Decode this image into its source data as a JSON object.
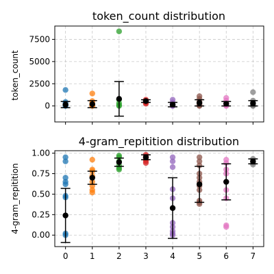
{
  "chart_data": [
    {
      "type": "scatter",
      "title": "token_count distribution",
      "xlabel": "",
      "ylabel": "token_count",
      "xlim": [
        -0.4,
        7.4
      ],
      "ylim": [
        -1800,
        9000
      ],
      "yticks": [
        0,
        2500,
        5000,
        7500
      ],
      "ytick_labels": [
        "0",
        "2500",
        "5000",
        "7500"
      ],
      "x_ticks": [
        0,
        1,
        2,
        3,
        4,
        5,
        6,
        7
      ],
      "grid": true,
      "points": [
        {
          "x": 0,
          "values": [
            1800,
            450,
            300,
            150,
            80,
            20,
            0
          ]
        },
        {
          "x": 1,
          "values": [
            1400,
            550,
            350,
            200,
            100,
            30,
            0
          ]
        },
        {
          "x": 2,
          "values": [
            8400,
            700,
            300,
            100,
            0
          ]
        },
        {
          "x": 3,
          "values": [
            700,
            600,
            450,
            350,
            250
          ]
        },
        {
          "x": 4,
          "values": [
            700,
            400,
            200,
            80,
            20,
            0
          ]
        },
        {
          "x": 5,
          "values": [
            1100,
            800,
            500,
            300,
            150,
            50,
            0
          ]
        },
        {
          "x": 6,
          "values": [
            900,
            600,
            300,
            150,
            50,
            0
          ]
        },
        {
          "x": 7,
          "values": [
            1550,
            600,
            350,
            150,
            50,
            0
          ]
        }
      ],
      "means": [
        150,
        200,
        800,
        550,
        150,
        350,
        250,
        300
      ],
      "errors": [
        350,
        400,
        1950,
        150,
        250,
        350,
        250,
        300
      ]
    },
    {
      "type": "scatter",
      "title": "4-gram_repitition distribution",
      "xlabel": "",
      "ylabel": "4-gram_repitition",
      "xlim": [
        -0.4,
        7.4
      ],
      "ylim": [
        -0.14,
        1.03
      ],
      "yticks": [
        0.0,
        0.25,
        0.5,
        0.75,
        1.0
      ],
      "ytick_labels": [
        "0.00",
        "0.25",
        "0.50",
        "0.75",
        "1.00"
      ],
      "x_ticks": [
        0,
        1,
        2,
        3,
        4,
        5,
        6,
        7
      ],
      "x_tick_labels": [
        "0",
        "1",
        "2",
        "3",
        "4",
        "5",
        "6",
        "7"
      ],
      "grid": true,
      "points": [
        {
          "x": 0,
          "values": [
            0.95,
            0.9,
            0.7,
            0.65,
            0.62,
            0.48,
            0.46,
            0.02,
            0.0
          ]
        },
        {
          "x": 1,
          "values": [
            0.92,
            0.8,
            0.78,
            0.72,
            0.65,
            0.6,
            0.55,
            0.52
          ]
        },
        {
          "x": 2,
          "values": [
            0.97,
            0.95,
            0.9,
            0.85,
            0.82,
            0.8
          ]
        },
        {
          "x": 3,
          "values": [
            0.98,
            0.96,
            0.94,
            0.92,
            0.9,
            0.88
          ]
        },
        {
          "x": 4,
          "values": [
            0.95,
            0.9,
            0.83,
            0.56,
            0.45,
            0.15,
            0.1,
            0.05,
            0.02,
            0.0
          ]
        },
        {
          "x": 5,
          "values": [
            0.95,
            0.9,
            0.85,
            0.75,
            0.7,
            0.65,
            0.6,
            0.55,
            0.42,
            0.4,
            0.38
          ]
        },
        {
          "x": 6,
          "values": [
            0.92,
            0.88,
            0.8,
            0.75,
            0.65,
            0.55,
            0.45,
            0.12,
            0.1
          ]
        },
        {
          "x": 7,
          "values": [
            0.93,
            0.9,
            0.88,
            0.86
          ]
        }
      ],
      "means": [
        0.24,
        0.7,
        0.89,
        0.95,
        0.33,
        0.62,
        0.65,
        0.9
      ],
      "errors": [
        0.33,
        0.08,
        0.05,
        0.03,
        0.37,
        0.22,
        0.22,
        0.03
      ]
    }
  ],
  "colors": [
    "#1f77b4",
    "#ff7f0e",
    "#2ca02c",
    "#d62728",
    "#9467bd",
    "#8c564b",
    "#e377c2",
    "#7f7f7f"
  ]
}
